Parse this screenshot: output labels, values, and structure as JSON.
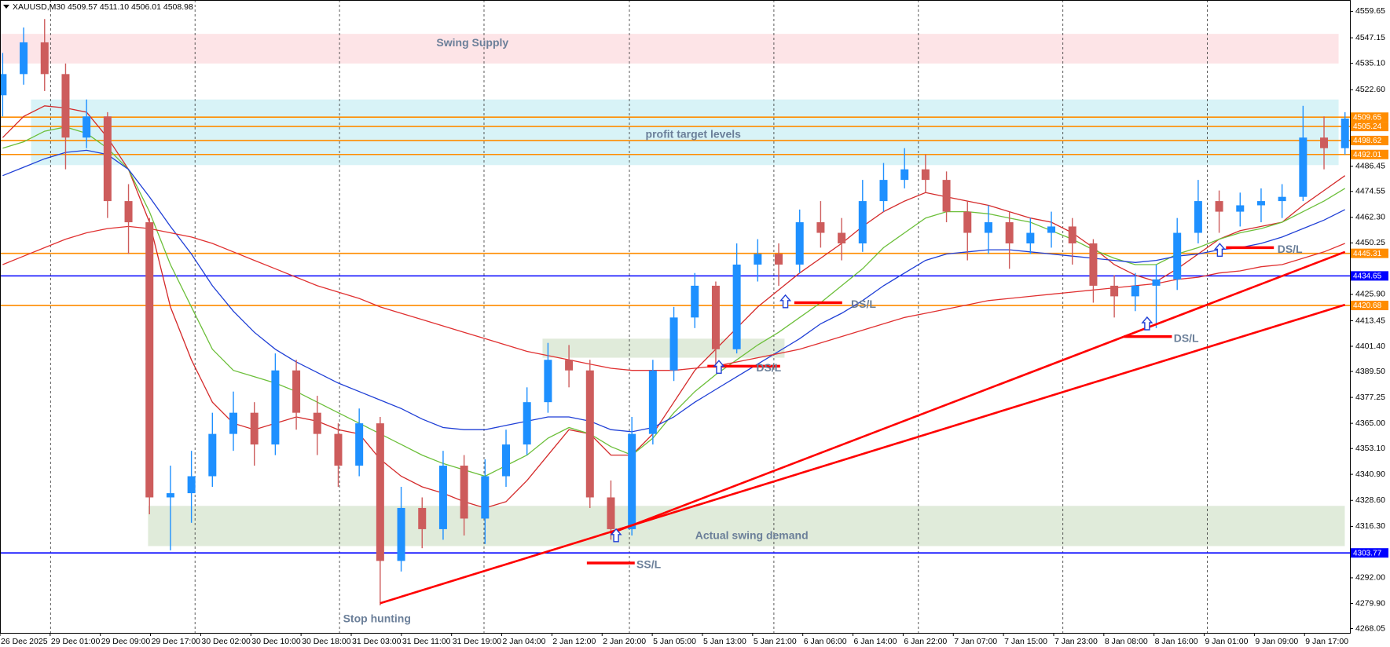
{
  "chart_data": {
    "type": "candlestick",
    "title": "XAUUSD,M30 4509.57 4511.10 4506.01 4508.98",
    "xticks": [
      "26 Dec 2025",
      "29 Dec 01:00",
      "29 Dec 09:00",
      "29 Dec 17:00",
      "30 Dec 02:00",
      "30 Dec 10:00",
      "30 Dec 18:00",
      "31 Dec 03:00",
      "31 Dec 11:00",
      "31 Dec 19:00",
      "2 Jan 04:00",
      "2 Jan 12:00",
      "2 Jan 20:00",
      "5 Jan 05:00",
      "5 Jan 13:00",
      "5 Jan 21:00",
      "6 Jan 06:00",
      "6 Jan 14:00",
      "6 Jan 22:00",
      "7 Jan 07:00",
      "7 Jan 15:00",
      "7 Jan 23:00",
      "8 Jan 08:00",
      "8 Jan 16:00",
      "9 Jan 01:00",
      "9 Jan 09:00",
      "9 Jan 17:00"
    ],
    "open": [
      4520,
      4530,
      4545,
      4530,
      4500,
      4510,
      4470,
      4460,
      4330,
      4332,
      4340,
      4360,
      4370,
      4355,
      4390,
      4370,
      4360,
      4345,
      4365,
      4300,
      4325,
      4315,
      4345,
      4320,
      4340,
      4355,
      4375,
      4395,
      4390,
      4330,
      4315,
      4360,
      4390,
      4415,
      4430,
      4400,
      4440,
      4445,
      4440,
      4460,
      4455,
      4450,
      4470,
      4480,
      4485,
      4480,
      4465,
      4455,
      4460,
      4450,
      4455,
      4458,
      4450,
      4430,
      4425,
      4430,
      4433,
      4455,
      4470,
      4465,
      4468,
      4470,
      4472,
      4500,
      4495
    ],
    "high": [
      4540,
      4552,
      4556,
      4535,
      4518,
      4512,
      4478,
      4462,
      4345,
      4352,
      4370,
      4380,
      4375,
      4398,
      4395,
      4378,
      4365,
      4372,
      4368,
      4335,
      4330,
      4352,
      4350,
      4348,
      4362,
      4382,
      4403,
      4402,
      4395,
      4338,
      4368,
      4395,
      4420,
      4436,
      4432,
      4450,
      4452,
      4450,
      4466,
      4470,
      4462,
      4480,
      4488,
      4495,
      4492,
      4484,
      4470,
      4468,
      4465,
      4462,
      4465,
      4462,
      4452,
      4435,
      4436,
      4440,
      4462,
      4480,
      4475,
      4474,
      4476,
      4478,
      4515,
      4510,
      4512
    ],
    "low": [
      4510,
      4525,
      4522,
      4485,
      4495,
      4462,
      4445,
      4322,
      4305,
      4318,
      4335,
      4352,
      4345,
      4350,
      4362,
      4350,
      4335,
      4340,
      4279,
      4295,
      4306,
      4310,
      4312,
      4308,
      4335,
      4350,
      4370,
      4382,
      4325,
      4310,
      4312,
      4355,
      4385,
      4410,
      4393,
      4398,
      4432,
      4430,
      4436,
      4448,
      4442,
      4446,
      4465,
      4476,
      4474,
      4460,
      4442,
      4445,
      4438,
      4445,
      4448,
      4440,
      4422,
      4415,
      4418,
      4410,
      4428,
      4450,
      4455,
      4458,
      4460,
      4462,
      4470,
      4485,
      4492
    ],
    "close": [
      4530,
      4545,
      4530,
      4500,
      4510,
      4470,
      4460,
      4330,
      4332,
      4340,
      4360,
      4370,
      4355,
      4390,
      4370,
      4360,
      4345,
      4365,
      4300,
      4325,
      4315,
      4345,
      4320,
      4340,
      4355,
      4375,
      4395,
      4390,
      4330,
      4315,
      4360,
      4390,
      4415,
      4430,
      4400,
      4440,
      4445,
      4440,
      4460,
      4455,
      4450,
      4470,
      4480,
      4485,
      4480,
      4465,
      4455,
      4460,
      4450,
      4455,
      4458,
      4450,
      4430,
      4425,
      4430,
      4433,
      4455,
      4470,
      4465,
      4468,
      4470,
      4472,
      4500,
      4495,
      4508.98
    ],
    "up_color": "#1e90ff",
    "down_color": "#cd5c5c",
    "series": [
      {
        "color": "#d42a2a",
        "values": [
          4500,
          4510,
          4515,
          4514,
          4512,
          4500,
          4485,
          4460,
          4420,
          4395,
          4375,
          4365,
          4362,
          4365,
          4368,
          4366,
          4362,
          4360,
          4348,
          4340,
          4335,
          4332,
          4328,
          4325,
          4328,
          4338,
          4350,
          4362,
          4360,
          4350,
          4350,
          4360,
          4375,
          4390,
          4400,
          4410,
          4420,
          4428,
          4436,
          4443,
          4450,
          4458,
          4465,
          4470,
          4474,
          4472,
          4470,
          4468,
          4465,
          4462,
          4460,
          4455,
          4448,
          4440,
          4435,
          4432,
          4438,
          4445,
          4452,
          4456,
          4458,
          4460,
          4468,
          4475,
          4482
        ]
      },
      {
        "color": "#6cbf3a",
        "values": [
          4495,
          4498,
          4503,
          4505,
          4502,
          4495,
          4485,
          4465,
          4440,
          4420,
          4400,
          4390,
          4387,
          4384,
          4380,
          4375,
          4370,
          4365,
          4360,
          4355,
          4350,
          4346,
          4343,
          4340,
          4345,
          4350,
          4358,
          4363,
          4360,
          4354,
          4350,
          4358,
          4370,
          4380,
          4388,
          4395,
          4402,
          4408,
          4415,
          4422,
          4430,
          4438,
          4448,
          4455,
          4462,
          4465,
          4465,
          4464,
          4462,
          4460,
          4456,
          4452,
          4447,
          4443,
          4440,
          4440,
          4445,
          4448,
          4452,
          4455,
          4457,
          4460,
          4465,
          4470,
          4476
        ]
      },
      {
        "color": "#1f3fd6",
        "values": [
          4482,
          4486,
          4490,
          4493,
          4494,
          4492,
          4485,
          4472,
          4458,
          4445,
          4430,
          4418,
          4408,
          4400,
          4394,
          4389,
          4384,
          4380,
          4376,
          4372,
          4367,
          4363,
          4362,
          4362,
          4364,
          4366,
          4368,
          4368,
          4366,
          4362,
          4361,
          4363,
          4368,
          4375,
          4381,
          4387,
          4393,
          4399,
          4405,
          4412,
          4417,
          4423,
          4430,
          4436,
          4442,
          4445,
          4446,
          4447,
          4447,
          4446,
          4445,
          4444,
          4443,
          4442,
          4441,
          4442,
          4444,
          4445,
          4447,
          4448,
          4450,
          4453,
          4457,
          4461,
          4466
        ]
      },
      {
        "color": "#e03030",
        "values": [
          4440,
          4444,
          4448,
          4452,
          4455,
          4457,
          4458,
          4457,
          4455,
          4453,
          4450,
          4446,
          4442,
          4438,
          4434,
          4430,
          4427,
          4424,
          4420,
          4417,
          4414,
          4411,
          4408,
          4405,
          4402,
          4399,
          4397,
          4395,
          4393,
          4391,
          4390,
          4390,
          4390,
          4391,
          4392,
          4394,
          4396,
          4398,
          4400,
          4403,
          4406,
          4409,
          4412,
          4415,
          4417,
          4419,
          4421,
          4423,
          4424,
          4425,
          4426,
          4427,
          4428,
          4429,
          4430,
          4431,
          4433,
          4434,
          4436,
          4437,
          4439,
          4440,
          4443,
          4446,
          4450
        ]
      }
    ],
    "ylim": [
      4266,
      4565
    ],
    "yticks": [
      4559.65,
      4547.15,
      {
        "value": 4535.1,
        "label": "4535.10"
      },
      {
        "value": 4522.6,
        "label": "4522.60"
      },
      4486.45,
      4474.55,
      {
        "value": 4462.3,
        "label": "4462.30"
      },
      4450.25,
      {
        "value": 4425.9,
        "label": "4425.90"
      },
      4413.45,
      {
        "value": 4401.4,
        "label": "4401.40"
      },
      {
        "value": 4389.5,
        "label": "4389.50"
      },
      4377.25,
      {
        "value": 4365,
        "label": "4365.00"
      },
      {
        "value": 4353.1,
        "label": "4353.10"
      },
      {
        "value": 4340.9,
        "label": "4340.90"
      },
      {
        "value": 4328.6,
        "label": "4328.60"
      },
      {
        "value": 4316.3,
        "label": "4316.30"
      },
      {
        "value": 4292,
        "label": "4292.00"
      },
      {
        "value": 4279.9,
        "label": "4279.90"
      },
      4268.05
    ],
    "levels": [
      {
        "value": 4509.65,
        "color": "#ff8c00"
      },
      {
        "value": 4505.24,
        "color": "#ff8c00"
      },
      {
        "value": 4498.62,
        "color": "#ff8c00"
      },
      {
        "value": 4492.01,
        "color": "#ff8c00"
      },
      {
        "value": 4445.31,
        "color": "#ff8c00"
      },
      {
        "value": 4434.65,
        "color": "#0000ff"
      },
      {
        "value": 4420.68,
        "color": "#ff8c00"
      },
      {
        "value": 4303.77,
        "color": "#0000ff"
      }
    ],
    "zones": [
      {
        "label": "Swing Supply",
        "range": [
          4535,
          4549
        ],
        "color": "#fde4e7"
      },
      {
        "label": "profit target levels",
        "range": [
          4487,
          4518
        ],
        "color": "#d8f3f7"
      },
      {
        "range": [
          4396,
          4405
        ],
        "color": "#e0ebda"
      },
      {
        "label": "Actual swing demand",
        "range": [
          4307,
          4326
        ],
        "color": "#e0ebda"
      }
    ],
    "trendlines": [
      {
        "x": [
          18,
          64
        ],
        "y": [
          4280,
          4421
        ],
        "color": "#ff0000"
      },
      {
        "x": [
          29,
          64
        ],
        "y": [
          4313,
          4446
        ],
        "color": "#ff0000"
      }
    ],
    "stops": [
      {
        "label": "SS/L",
        "value": 4299
      },
      {
        "label": "DS/L",
        "value": 4422
      },
      {
        "label": "DS/L",
        "value": 4392
      },
      {
        "label": "DS/L",
        "value": 4406
      },
      {
        "label": "DS/L",
        "value": 4448
      }
    ],
    "annotations": [
      {
        "text": "Stop hunting"
      }
    ]
  }
}
